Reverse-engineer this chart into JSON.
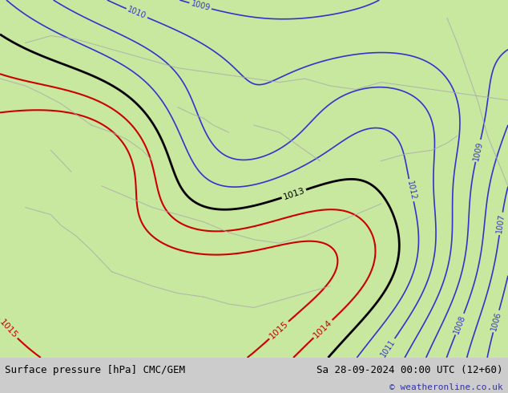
{
  "title_left": "Surface pressure [hPa] CMC/GEM",
  "title_right": "Sa 28-09-2024 00:00 UTC (12+60)",
  "copyright": "© weatheronline.co.uk",
  "bg_color": "#c8e8a0",
  "footer_bg": "#cccccc",
  "blue_color": "#3333cc",
  "red_color": "#cc0000",
  "black_color": "#000000",
  "gray_color": "#aaaaaa",
  "fig_width": 6.34,
  "fig_height": 4.9,
  "dpi": 100
}
